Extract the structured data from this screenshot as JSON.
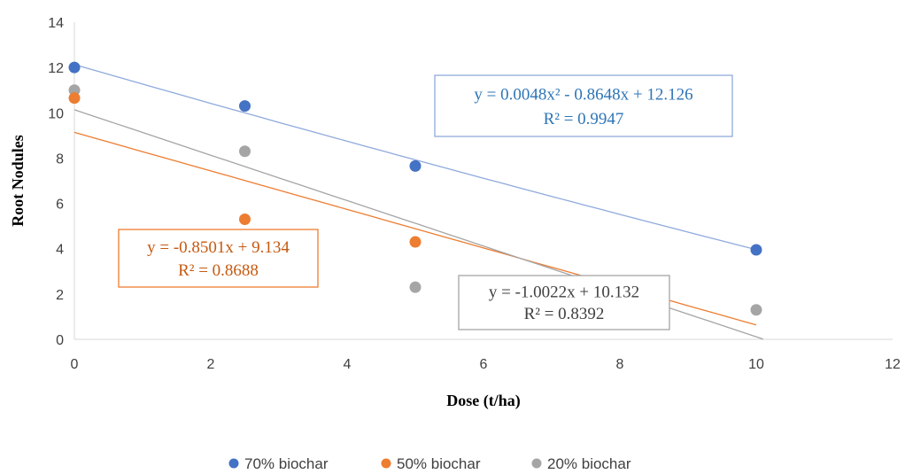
{
  "chart_data": {
    "type": "scatter",
    "xlabel": "Dose (t/ha)",
    "ylabel": "Root Nodules",
    "xlim": [
      0,
      12
    ],
    "ylim": [
      0,
      14
    ],
    "x_ticks": [
      0,
      2,
      4,
      6,
      8,
      10,
      12
    ],
    "y_ticks": [
      0,
      2,
      4,
      6,
      8,
      10,
      12,
      14
    ],
    "x_tick_labels": [
      "0",
      "2",
      "4",
      "6",
      "8",
      "10",
      "12"
    ],
    "y_tick_labels": [
      "0",
      "2",
      "4",
      "6",
      "8",
      "10",
      "12",
      "14"
    ],
    "grid": false,
    "legend_position": "bottom",
    "series": [
      {
        "name": "70% biochar",
        "color": "#4472C4",
        "x": [
          0,
          2.5,
          5,
          10
        ],
        "y": [
          12,
          10.3,
          7.65,
          3.95
        ],
        "trendline": {
          "kind": "polynomial",
          "coefficients": [
            0.0048,
            -0.8648,
            12.126
          ],
          "color": "#8FAADC",
          "equation": "y = 0.0048x² - 0.8648x + 12.126",
          "r2": "R² = 0.9947"
        }
      },
      {
        "name": "50% biochar",
        "color": "#ED7D31",
        "x": [
          0,
          2.5,
          5,
          10
        ],
        "y": [
          10.65,
          5.3,
          4.3,
          null
        ],
        "trendline": {
          "kind": "linear",
          "coefficients": [
            -0.8501,
            9.134
          ],
          "color": "#ED7D31",
          "equation": "y = -0.8501x + 9.134",
          "r2": "R² = 0.8688"
        }
      },
      {
        "name": "20% biochar",
        "color": "#A5A5A5",
        "x": [
          0,
          2.5,
          5,
          10
        ],
        "y": [
          11,
          8.3,
          2.3,
          1.3
        ],
        "trendline": {
          "kind": "linear",
          "coefficients": [
            -1.0022,
            10.132
          ],
          "color": "#A5A5A5",
          "equation": "y = -1.0022x + 10.132",
          "r2": "R² = 0.8392"
        }
      }
    ]
  }
}
